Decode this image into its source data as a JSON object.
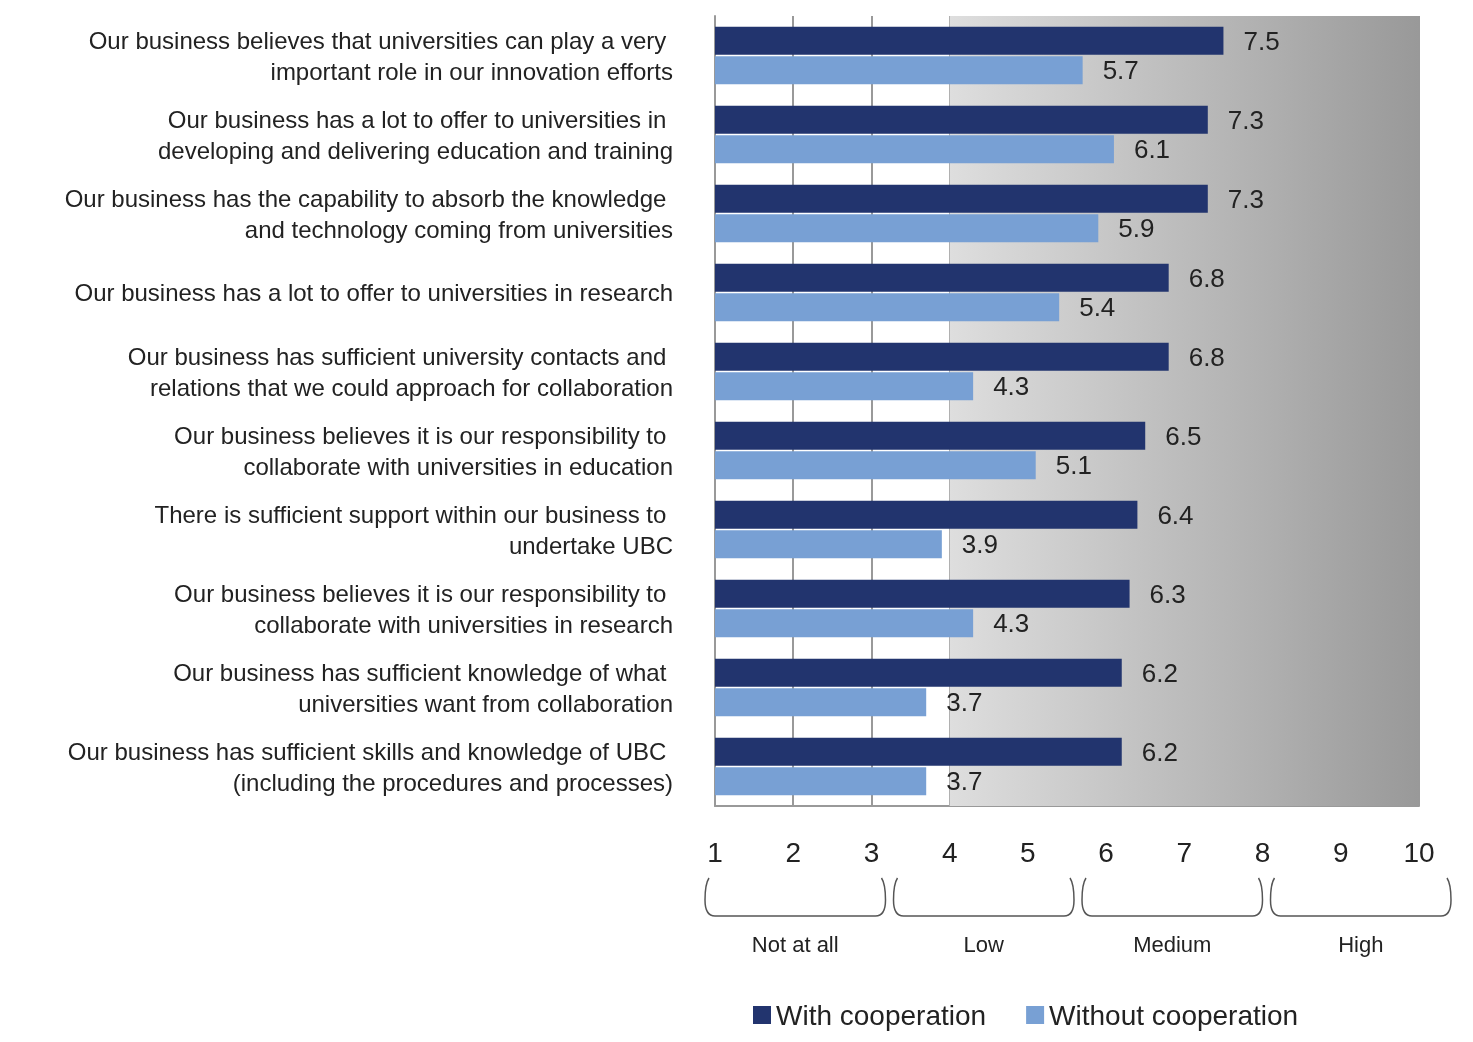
{
  "chart_data": {
    "type": "bar",
    "orientation": "horizontal",
    "categories": [
      "Our business believes that universities can play a very important role in our innovation efforts",
      "Our business has a lot to offer to universities in developing and delivering education and training",
      "Our business has the capability to absorb the knowledge and technology coming from universities",
      "Our business has a lot to offer to universities in research",
      "Our business has sufficient university contacts and relations that we could approach for collaboration",
      "Our business believes it is our responsibility to collaborate with universities in education",
      "There is sufficient support within our business to undertake UBC",
      "Our business believes it is our responsibility to collaborate with universities in research",
      "Our business has sufficient knowledge of what universities want from collaboration",
      "Our business has sufficient skills and knowledge of UBC (including the procedures and processes)"
    ],
    "series": [
      {
        "name": "With cooperation",
        "color": "#22346e",
        "values": [
          7.5,
          7.3,
          7.3,
          6.8,
          6.8,
          6.5,
          6.4,
          6.3,
          6.2,
          6.2
        ]
      },
      {
        "name": "Without cooperation",
        "color": "#78a0d4",
        "values": [
          5.7,
          6.1,
          5.9,
          5.4,
          4.3,
          5.1,
          3.9,
          4.3,
          3.7,
          3.7
        ]
      }
    ],
    "xlim": [
      1,
      10
    ],
    "xticks": [
      1,
      2,
      3,
      4,
      5,
      6,
      7,
      8,
      9,
      10
    ],
    "bands": [
      {
        "axis": "x",
        "from": 4,
        "to": 10,
        "color": "#999999"
      }
    ],
    "annotations": [
      "Not at all",
      "Low",
      "Medium",
      "High"
    ],
    "data_labels": true,
    "grid": "x",
    "legend": "bottom"
  }
}
